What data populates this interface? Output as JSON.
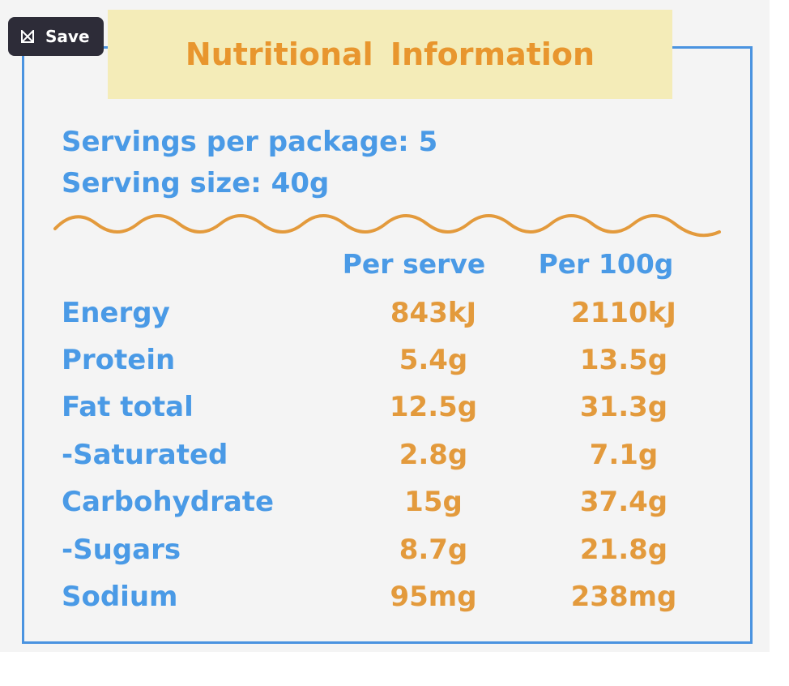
{
  "save_button": {
    "label": "Save",
    "icon": "bookmark-icon"
  },
  "title": "Nutritional Information",
  "servings_per_package": "Servings per package: 5",
  "serving_size": "Serving size: 40g",
  "columns": [
    "Per serve",
    "Per 100g"
  ],
  "rows": [
    {
      "label": "Energy",
      "per_serve": "843kJ",
      "per_100g": "2110kJ"
    },
    {
      "label": "Protein",
      "per_serve": "5.4g",
      "per_100g": "13.5g"
    },
    {
      "label": "Fat total",
      "per_serve": "12.5g",
      "per_100g": "31.3g"
    },
    {
      "label": "-Saturated",
      "per_serve": "2.8g",
      "per_100g": "7.1g"
    },
    {
      "label": "Carbohydrate",
      "per_serve": "15g",
      "per_100g": "37.4g"
    },
    {
      "label": "-Sugars",
      "per_serve": "8.7g",
      "per_100g": "21.8g"
    },
    {
      "label": "Sodium",
      "per_serve": "95mg",
      "per_100g": "238mg"
    }
  ],
  "colors": {
    "blue": "#4a9ae6",
    "orange": "#e39a3c",
    "title_bg": "#f4ecb8",
    "button_bg": "#2d2c38"
  }
}
